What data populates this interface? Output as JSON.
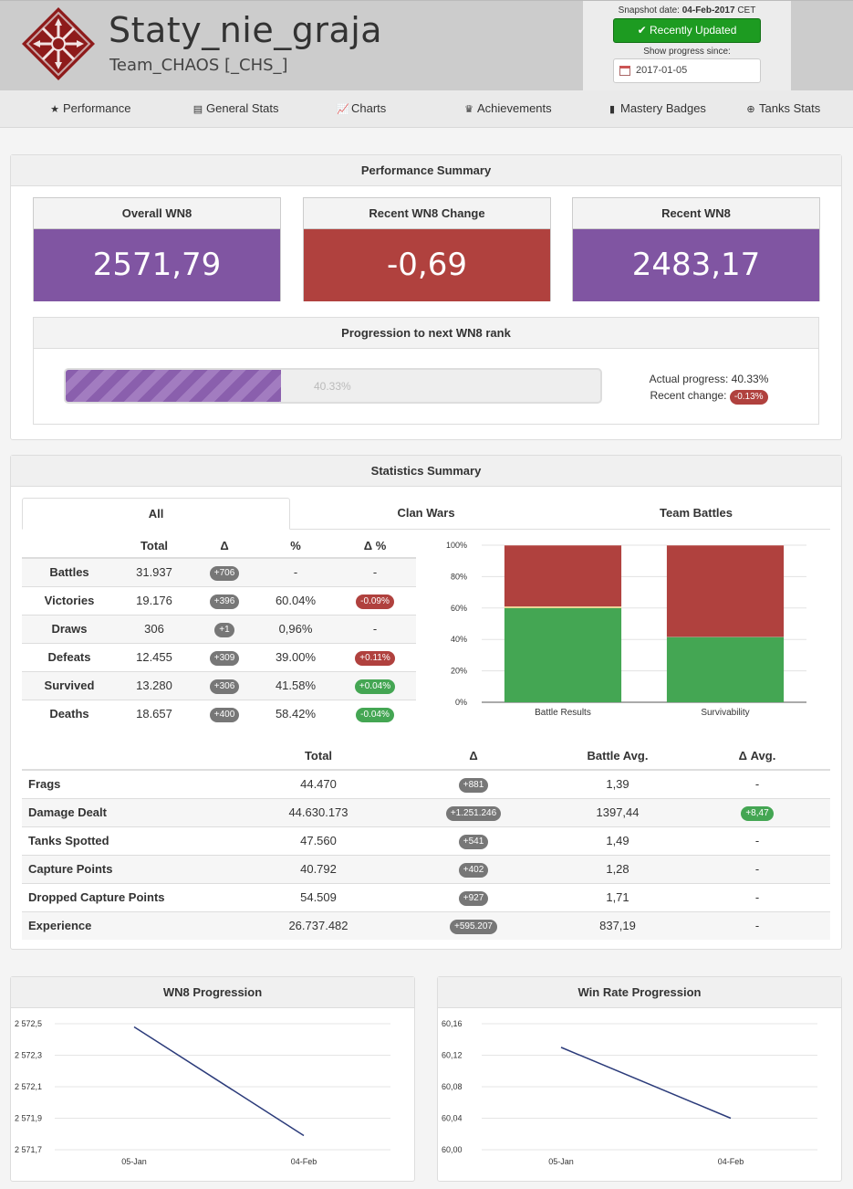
{
  "header": {
    "player_name": "Staty_nie_graja",
    "clan_name": "Team_CHAOS [_CHS_]",
    "snapshot_label": "Snapshot date:",
    "snapshot_date": "04-Feb-2017",
    "snapshot_tz": "CET",
    "recently_updated": "Recently Updated",
    "show_progress_label": "Show progress since:",
    "progress_since_value": "2017-01-05"
  },
  "nav": {
    "items": [
      {
        "label": "Performance",
        "icon": "star-icon"
      },
      {
        "label": "General Stats",
        "icon": "list-icon"
      },
      {
        "label": "Charts",
        "icon": "line-chart-icon"
      },
      {
        "label": "Achievements",
        "icon": "trophy-icon"
      },
      {
        "label": "Mastery Badges",
        "icon": "bookmark-icon"
      },
      {
        "label": "Tanks Stats",
        "icon": "crosshair-icon"
      }
    ]
  },
  "performance": {
    "title": "Performance Summary",
    "kpis": [
      {
        "label": "Overall WN8",
        "value": "2571,79",
        "color": "#8055a2"
      },
      {
        "label": "Recent WN8 Change",
        "value": "-0,69",
        "color": "#b0413e"
      },
      {
        "label": "Recent WN8",
        "value": "2483,17",
        "color": "#8055a2"
      }
    ],
    "progression": {
      "title": "Progression to next WN8 rank",
      "percent_text": "40.33%",
      "percent": 40.33,
      "actual_label": "Actual progress:",
      "actual_value": "40.33%",
      "recent_label": "Recent change:",
      "recent_value": "-0.13%"
    }
  },
  "statistics": {
    "title": "Statistics Summary",
    "tabs": [
      "All",
      "Clan Wars",
      "Team Battles"
    ],
    "table1": {
      "headers": [
        "",
        "Total",
        "Δ",
        "%",
        "Δ %"
      ],
      "rows": [
        {
          "label": "Battles",
          "total": "31.937",
          "delta": "+706",
          "pct": "-",
          "dpct": "-",
          "dpct_type": "none"
        },
        {
          "label": "Victories",
          "total": "19.176",
          "delta": "+396",
          "pct": "60.04%",
          "dpct": "-0.09%",
          "dpct_type": "red"
        },
        {
          "label": "Draws",
          "total": "306",
          "delta": "+1",
          "pct": "0,96%",
          "dpct": "-",
          "dpct_type": "none"
        },
        {
          "label": "Defeats",
          "total": "12.455",
          "delta": "+309",
          "pct": "39.00%",
          "dpct": "+0.11%",
          "dpct_type": "red"
        },
        {
          "label": "Survived",
          "total": "13.280",
          "delta": "+306",
          "pct": "41.58%",
          "dpct": "+0.04%",
          "dpct_type": "green"
        },
        {
          "label": "Deaths",
          "total": "18.657",
          "delta": "+400",
          "pct": "58.42%",
          "dpct": "-0.04%",
          "dpct_type": "green"
        }
      ]
    },
    "table2": {
      "headers": [
        "",
        "Total",
        "Δ",
        "Battle Avg.",
        "Δ Avg."
      ],
      "rows": [
        {
          "label": "Frags",
          "total": "44.470",
          "delta": "+881",
          "avg": "1,39",
          "davg": "-",
          "davg_type": "none"
        },
        {
          "label": "Damage Dealt",
          "total": "44.630.173",
          "delta": "+1.251.246",
          "avg": "1397,44",
          "davg": "+8,47",
          "davg_type": "green"
        },
        {
          "label": "Tanks Spotted",
          "total": "47.560",
          "delta": "+541",
          "avg": "1,49",
          "davg": "-",
          "davg_type": "none"
        },
        {
          "label": "Capture Points",
          "total": "40.792",
          "delta": "+402",
          "avg": "1,28",
          "davg": "-",
          "davg_type": "none"
        },
        {
          "label": "Dropped Capture Points",
          "total": "54.509",
          "delta": "+927",
          "avg": "1,71",
          "davg": "-",
          "davg_type": "none"
        },
        {
          "label": "Experience",
          "total": "26.737.482",
          "delta": "+595.207",
          "avg": "837,19",
          "davg": "-",
          "davg_type": "none"
        }
      ]
    }
  },
  "chart_data": [
    {
      "type": "bar",
      "stacked": true,
      "categories": [
        "Battle Results",
        "Survivability"
      ],
      "y_ticks": [
        "0%",
        "20%",
        "40%",
        "60%",
        "80%",
        "100%"
      ],
      "ylim": [
        0,
        100
      ],
      "series": [
        {
          "values": [
            60.04,
            41.58
          ],
          "color": "#44a653"
        },
        {
          "values": [
            0.96,
            0
          ],
          "color": "#e8c86a"
        },
        {
          "values": [
            39.0,
            58.42
          ],
          "color": "#b0413e"
        }
      ]
    },
    {
      "type": "line",
      "title": "WN8 Progression",
      "x": [
        "05-Jan",
        "04-Feb"
      ],
      "y_ticks": [
        "2 572,5",
        "2 572,3",
        "2 572,1",
        "2 571,9",
        "2 571,7"
      ],
      "ylim": [
        2571.7,
        2572.5
      ],
      "values": [
        2572.48,
        2571.79
      ],
      "color": "#2b3b7a"
    },
    {
      "type": "line",
      "title": "Win Rate Progression",
      "x": [
        "05-Jan",
        "04-Feb"
      ],
      "y_ticks": [
        "60,16",
        "60,12",
        "60,08",
        "60,04",
        "60,00"
      ],
      "ylim": [
        60.0,
        60.16
      ],
      "values": [
        60.13,
        60.04
      ],
      "color": "#2b3b7a"
    }
  ]
}
